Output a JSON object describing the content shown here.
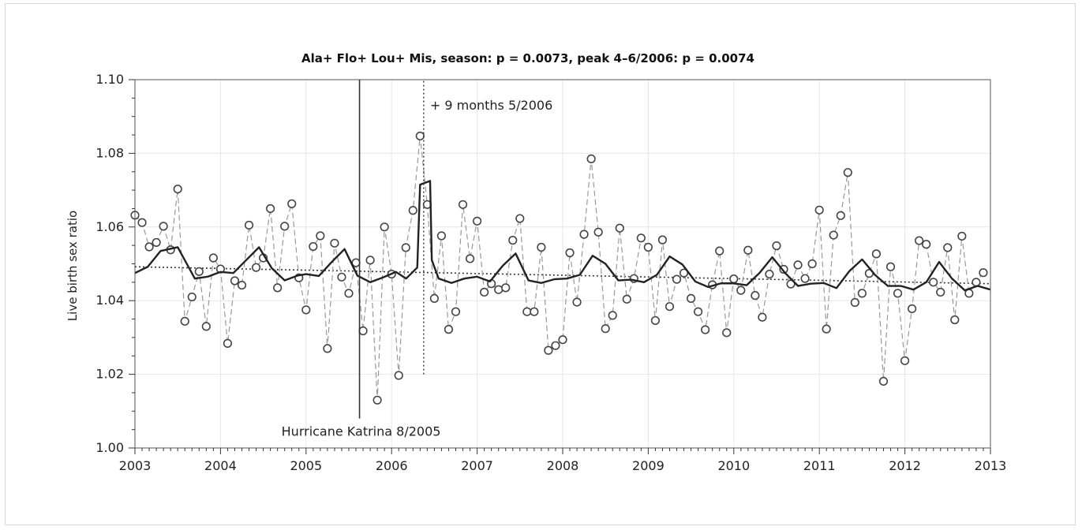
{
  "chart_data": {
    "type": "line",
    "title": "Ala+ Flo+ Lou+ Mis, season: p = 0.0073,  peak 4–6/2006: p = 0.0074",
    "xlabel": "",
    "ylabel": "Live birth sex ratio",
    "xlim": [
      2003,
      2013
    ],
    "ylim": [
      1.0,
      1.1
    ],
    "x_ticks": [
      "2003",
      "2004",
      "2005",
      "2006",
      "2007",
      "2008",
      "2009",
      "2010",
      "2011",
      "2012",
      "2013"
    ],
    "y_ticks": [
      "1.00",
      "1.02",
      "1.04",
      "1.06",
      "1.08",
      "1.10"
    ],
    "grid": true,
    "annotations": [
      {
        "text": "Hurricane Katrina 8/2005",
        "x": 2005.625,
        "y_from": 1.008,
        "y_to": 1.1,
        "line": "solid"
      },
      {
        "text": "+ 9 months 5/2006",
        "x": 2006.375,
        "y_from": 1.02,
        "y_to": 1.1,
        "line": "dotted"
      }
    ],
    "series": [
      {
        "kind": "monthly_observed",
        "style": "dashed-with-circles",
        "color": "#999999",
        "x_start": 2003.0,
        "x_step": 0.08333,
        "values": [
          1.0632,
          1.0612,
          1.0546,
          1.0558,
          1.0602,
          1.0538,
          1.0703,
          1.0344,
          1.041,
          1.0479,
          1.033,
          1.0516,
          1.0486,
          1.0284,
          1.0454,
          1.0442,
          1.0605,
          1.049,
          1.0516,
          1.065,
          1.0435,
          1.0602,
          1.0663,
          1.0462,
          1.0375,
          1.0547,
          1.0576,
          1.027,
          1.0556,
          1.0464,
          1.042,
          1.0503,
          1.0318,
          1.051,
          1.013,
          1.06,
          1.0472,
          1.0197,
          1.0544,
          1.0645,
          1.0847,
          1.0661,
          1.0406,
          1.0576,
          1.0322,
          1.037,
          1.0661,
          1.0514,
          1.0616,
          1.0423,
          1.0446,
          1.043,
          1.0435,
          1.0564,
          1.0623,
          1.037,
          1.037,
          1.0545,
          1.0265,
          1.0278,
          1.0294,
          1.053,
          1.0396,
          1.058,
          1.0785,
          1.0586,
          1.0324,
          1.036,
          1.0597,
          1.0404,
          1.046,
          1.057,
          1.0545,
          1.0346,
          1.0565,
          1.0384,
          1.0458,
          1.0475,
          1.0406,
          1.037,
          1.0321,
          1.0443,
          1.0535,
          1.0313,
          1.0459,
          1.0428,
          1.0537,
          1.0414,
          1.0355,
          1.0472,
          1.0549,
          1.0485,
          1.0445,
          1.0497,
          1.046,
          1.05,
          1.0646,
          1.0323,
          1.0578,
          1.0631,
          1.0748,
          1.0395,
          1.042,
          1.0474,
          1.0527,
          1.0181,
          1.0492,
          1.042,
          1.0237,
          1.0378,
          1.0563,
          1.0553,
          1.045,
          1.0423,
          1.0544,
          1.0348,
          1.0575,
          1.042,
          1.045,
          1.0476
        ]
      },
      {
        "kind": "seasonal_model_fit",
        "style": "solid-bold",
        "color": "#222222",
        "x": [
          2003.0,
          2003.15,
          2003.3,
          2003.5,
          2003.7,
          2003.85,
          2004.0,
          2004.15,
          2004.3,
          2004.45,
          2004.6,
          2004.75,
          2004.9,
          2005.0,
          2005.15,
          2005.3,
          2005.45,
          2005.6,
          2005.75,
          2005.9,
          2006.05,
          2006.17,
          2006.3,
          2006.333,
          2006.45,
          2006.47,
          2006.55,
          2006.7,
          2006.85,
          2007.0,
          2007.15,
          2007.3,
          2007.45,
          2007.6,
          2007.75,
          2007.9,
          2008.05,
          2008.2,
          2008.35,
          2008.5,
          2008.65,
          2008.8,
          2008.95,
          2009.1,
          2009.25,
          2009.4,
          2009.55,
          2009.7,
          2009.85,
          2010.0,
          2010.15,
          2010.3,
          2010.45,
          2010.6,
          2010.75,
          2010.9,
          2011.05,
          2011.2,
          2011.35,
          2011.5,
          2011.65,
          2011.8,
          2011.95,
          2012.1,
          2012.25,
          2012.4,
          2012.55,
          2012.7,
          2012.85,
          2013.0
        ],
        "values": [
          1.0475,
          1.0492,
          1.0535,
          1.0545,
          1.046,
          1.0465,
          1.0478,
          1.0475,
          1.051,
          1.0545,
          1.0488,
          1.0455,
          1.0468,
          1.0472,
          1.0467,
          1.0505,
          1.054,
          1.0468,
          1.045,
          1.0463,
          1.0478,
          1.046,
          1.049,
          1.0715,
          1.0725,
          1.051,
          1.046,
          1.0448,
          1.046,
          1.0465,
          1.0452,
          1.0495,
          1.0528,
          1.0455,
          1.0448,
          1.0458,
          1.046,
          1.047,
          1.0522,
          1.05,
          1.0455,
          1.0457,
          1.045,
          1.047,
          1.052,
          1.0498,
          1.0452,
          1.0437,
          1.0447,
          1.0447,
          1.0442,
          1.0475,
          1.0518,
          1.0475,
          1.044,
          1.0446,
          1.0448,
          1.0434,
          1.048,
          1.0512,
          1.047,
          1.044,
          1.044,
          1.043,
          1.045,
          1.0505,
          1.046,
          1.0428,
          1.044,
          1.043
        ]
      },
      {
        "kind": "linear_trend",
        "style": "dotted",
        "color": "#333333",
        "x": [
          2003.0,
          2013.0
        ],
        "values": [
          1.0492,
          1.0446
        ]
      }
    ]
  }
}
